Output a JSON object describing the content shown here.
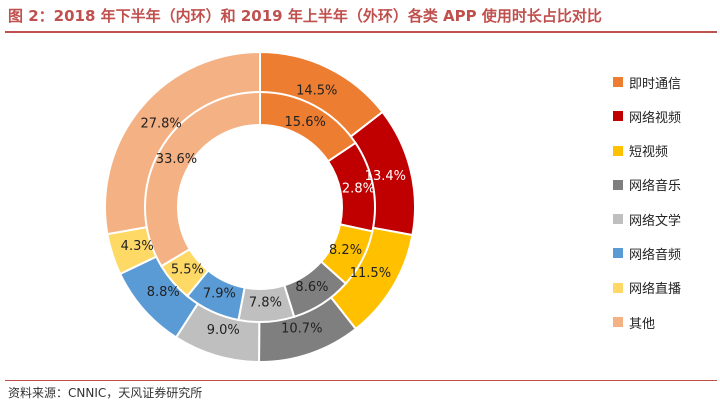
{
  "title": "图 2：2018 年下半年（内环）和 2019 年上半年（外环）各类 APP 使用时长占比对比",
  "source": "资料来源：CNNIC，天风证券研究所",
  "chart_data": {
    "type": "pie",
    "categories": [
      "即时通信",
      "网络视频",
      "短视频",
      "网络音乐",
      "网络文学",
      "网络音频",
      "网络直播",
      "其他"
    ],
    "colors": [
      "#ED7D31",
      "#C00000",
      "#FFC000",
      "#7F7F7F",
      "#BFBFBF",
      "#5B9BD5",
      "#FFD966",
      "#F4B183"
    ],
    "series": [
      {
        "ring": "outer",
        "values": [
          14.5,
          13.4,
          11.5,
          10.7,
          9.0,
          8.8,
          4.3,
          27.8
        ],
        "labels": [
          "14.5%",
          "13.4%",
          "11.5%",
          "10.7%",
          "9.0%",
          "8.8%",
          "4.3%",
          "27.8%"
        ]
      },
      {
        "ring": "inner",
        "values": [
          15.6,
          12.8,
          8.2,
          8.6,
          7.8,
          7.9,
          5.5,
          33.6
        ],
        "labels": [
          "15.6%",
          "12.8%",
          "8.2%",
          "8.6%",
          "7.8%",
          "7.9%",
          "5.5%",
          "33.6%"
        ]
      }
    ],
    "legend": "right"
  }
}
